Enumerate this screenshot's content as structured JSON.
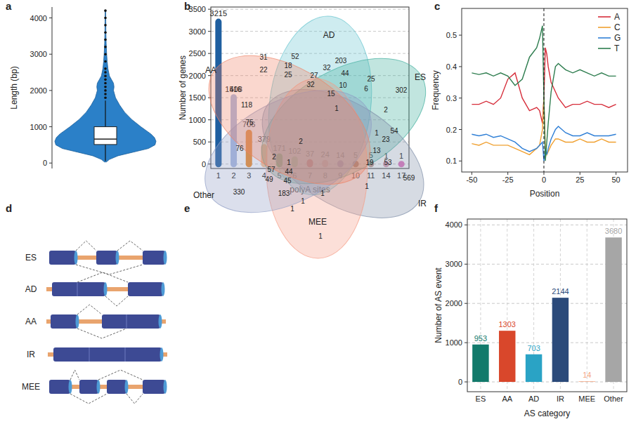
{
  "chart_data": [
    {
      "panel": "a",
      "type": "violin",
      "y_label": "Length (bp)",
      "color": "#2b80c8",
      "ylim": [
        -150,
        4300
      ],
      "yticks": [
        0,
        1000,
        2000,
        3000,
        4000
      ],
      "violin": {
        "y": [
          30,
          100,
          200,
          300,
          400,
          500,
          600,
          700,
          800,
          900,
          1000,
          1200,
          1400,
          1600,
          1800,
          2000,
          2100,
          2200,
          2300,
          2400,
          2600,
          2800,
          3000,
          3300,
          3600,
          3900,
          4200
        ],
        "density": [
          0.02,
          0.08,
          0.25,
          0.55,
          0.85,
          0.98,
          1.0,
          0.97,
          0.9,
          0.8,
          0.7,
          0.52,
          0.38,
          0.28,
          0.2,
          0.16,
          0.17,
          0.16,
          0.12,
          0.08,
          0.05,
          0.035,
          0.025,
          0.015,
          0.01,
          0.008,
          0.005
        ]
      },
      "box": {
        "whisker_low": 60,
        "q1": 510,
        "median": 660,
        "q3": 1000,
        "whisker_high": 1720
      },
      "outliers": [
        1800,
        1900,
        2000,
        2100,
        2200,
        2300,
        2400,
        2500,
        2600,
        2800,
        3000,
        3200,
        3400,
        3600,
        3800,
        4000,
        4200
      ]
    },
    {
      "panel": "b",
      "type": "lollipop",
      "x_label": "polyA sites",
      "y_label": "Number of genes",
      "categories": [
        "1",
        "2",
        "3",
        "4",
        "5",
        "6",
        "7",
        "8",
        "9",
        "10",
        "11",
        "14",
        "17"
      ],
      "values": [
        3215,
        1508,
        706,
        379,
        171,
        102,
        37,
        24,
        14,
        5,
        5,
        1,
        1
      ],
      "colors": [
        "#1f5fa0",
        "#a9b9e0",
        "#f08a24",
        "#f9c08f",
        "#2ca02c",
        "#98d18b",
        "#d62728",
        "#f7a0a0",
        "#8c6bb1",
        "#8c564b",
        "#c49c94",
        "#d9a3b5",
        "#e377c2"
      ],
      "ylim": [
        -100,
        3550
      ],
      "yticks": [
        0,
        500,
        1000,
        1500,
        2000,
        2500,
        3000,
        3500
      ],
      "grid": true,
      "data_labels": true
    },
    {
      "panel": "c",
      "type": "line",
      "x_label": "Position",
      "y_label": "Frequency",
      "x": [
        -50,
        -45,
        -40,
        -35,
        -30,
        -25,
        -20,
        -15,
        -10,
        -5,
        -3,
        -1,
        0,
        1,
        2,
        3,
        5,
        8,
        10,
        15,
        20,
        25,
        30,
        35,
        40,
        45,
        50
      ],
      "series": [
        {
          "name": "A",
          "color": "#d62d3a",
          "values": [
            0.28,
            0.28,
            0.29,
            0.28,
            0.3,
            0.36,
            0.38,
            0.3,
            0.26,
            0.27,
            0.26,
            0.22,
            0.3,
            0.46,
            0.44,
            0.4,
            0.35,
            0.32,
            0.3,
            0.27,
            0.28,
            0.28,
            0.29,
            0.28,
            0.28,
            0.27,
            0.28
          ]
        },
        {
          "name": "C",
          "color": "#f0a030",
          "values": [
            0.155,
            0.15,
            0.16,
            0.15,
            0.15,
            0.15,
            0.14,
            0.13,
            0.12,
            0.14,
            0.15,
            0.2,
            0.3,
            0.15,
            0.12,
            0.13,
            0.15,
            0.17,
            0.17,
            0.16,
            0.16,
            0.17,
            0.16,
            0.16,
            0.17,
            0.16,
            0.16
          ]
        },
        {
          "name": "G",
          "color": "#2f7fd6",
          "values": [
            0.185,
            0.18,
            0.185,
            0.175,
            0.18,
            0.17,
            0.16,
            0.14,
            0.13,
            0.14,
            0.15,
            0.16,
            0.1,
            0.14,
            0.12,
            0.14,
            0.17,
            0.2,
            0.21,
            0.19,
            0.18,
            0.18,
            0.19,
            0.18,
            0.18,
            0.18,
            0.185
          ]
        },
        {
          "name": "T",
          "color": "#2e7d4f",
          "values": [
            0.38,
            0.375,
            0.38,
            0.37,
            0.38,
            0.37,
            0.34,
            0.36,
            0.43,
            0.46,
            0.49,
            0.53,
            0.3,
            0.1,
            0.16,
            0.22,
            0.32,
            0.4,
            0.41,
            0.39,
            0.38,
            0.39,
            0.38,
            0.37,
            0.38,
            0.37,
            0.37
          ]
        }
      ],
      "xlim": [
        -57,
        58
      ],
      "xticks": [
        -50,
        -25,
        0,
        25,
        50
      ],
      "ylim": [
        0.065,
        0.585
      ],
      "yticks": [
        0.1,
        0.2,
        0.3,
        0.4,
        0.5
      ],
      "legend": "top-right",
      "vline": 0
    },
    {
      "panel": "d",
      "type": "diagram",
      "labels": [
        "ES",
        "AD",
        "AA",
        "IR",
        "MEE"
      ]
    },
    {
      "panel": "e",
      "type": "venn",
      "sets": [
        "AD",
        "ES",
        "IR",
        "MEE",
        "Other",
        "AA"
      ],
      "colors": [
        "#67c5cf",
        "#3fae9d",
        "#7f8fa8",
        "#f59c86",
        "#8e9cc4",
        "#ee8468"
      ],
      "counts": [
        203,
        31,
        52,
        18,
        32,
        44,
        22,
        25,
        27,
        10,
        25,
        32,
        15,
        6,
        302,
        416,
        1,
        2,
        118,
        75,
        54,
        1,
        23,
        2,
        76,
        13,
        19,
        53,
        569,
        2,
        1,
        57,
        44,
        49,
        45,
        330,
        183,
        1,
        1,
        1,
        1,
        1
      ]
    },
    {
      "panel": "f",
      "type": "bar",
      "x_label": "AS category",
      "y_label": "Number of AS event",
      "categories": [
        "ES",
        "AA",
        "AD",
        "IR",
        "MEE",
        "Other"
      ],
      "values": [
        953,
        1303,
        703,
        2144,
        14,
        3680
      ],
      "colors": [
        "#127a6b",
        "#d9472b",
        "#2aa3c5",
        "#2b4a7a",
        "#f4a582",
        "#a6a6a6"
      ],
      "ylim": [
        -250,
        4150
      ],
      "yticks": [
        0,
        1000,
        2000,
        3000,
        4000
      ],
      "grid": true,
      "data_labels": true
    }
  ]
}
